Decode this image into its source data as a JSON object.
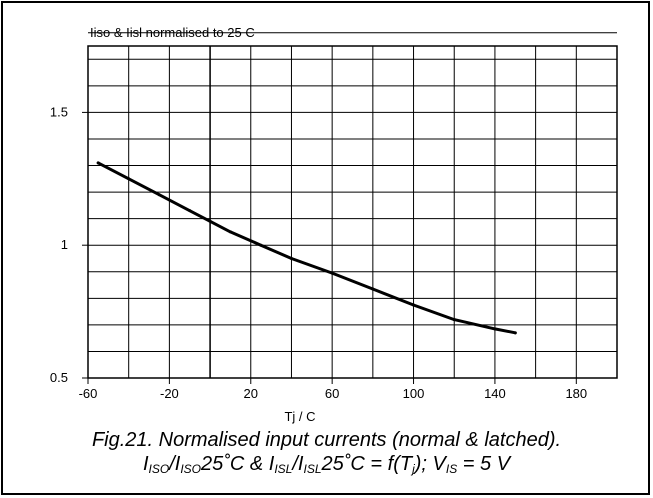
{
  "chart_data": {
    "type": "line",
    "title": "Iiso & Iisl normalised to 25 C",
    "xlabel": "Tj / C",
    "ylabel": "",
    "xlim": [
      -60,
      200
    ],
    "ylim": [
      0.5,
      1.75
    ],
    "x_tick_labels": [
      "-60",
      "-20",
      "20",
      "60",
      "100",
      "140",
      "180"
    ],
    "y_tick_labels": [
      "0.5",
      "1",
      "1.5"
    ],
    "x_ticks": [
      -60,
      -20,
      20,
      60,
      100,
      140,
      180
    ],
    "y_ticks": [
      0.5,
      1,
      1.5
    ],
    "grid": true,
    "series": [
      {
        "x": [
          -55,
          -40,
          -25,
          -10,
          0,
          10,
          25,
          40,
          60,
          80,
          100,
          120,
          140,
          150
        ],
        "y": [
          1.31,
          1.25,
          1.19,
          1.13,
          1.09,
          1.05,
          1.0,
          0.95,
          0.895,
          0.835,
          0.775,
          0.72,
          0.685,
          0.67
        ]
      }
    ]
  },
  "caption": {
    "line1": "Fig.21.  Normalised input currents (normal & latched).",
    "line2": {
      "i1": "I",
      "s1": "ISO",
      "t1": "/I",
      "s2": "ISO",
      "t2": "25˚C & I",
      "s3": "ISL",
      "t3": "/I",
      "s4": "ISL",
      "t4": "25˚C = f(T",
      "s5": "j",
      "t5": "); V",
      "s6": "IS",
      "t6": " = 5 V"
    }
  }
}
